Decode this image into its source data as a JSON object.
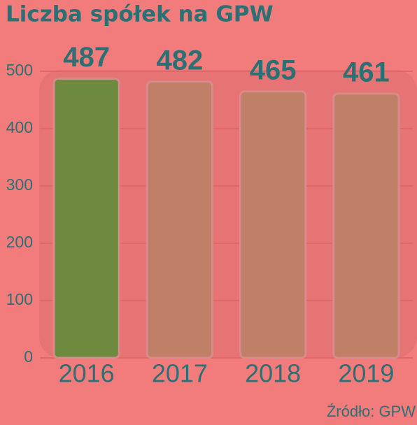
{
  "chart_data": {
    "type": "bar",
    "title": "Liczba spółek na GPW",
    "source": "Źródło: GPW",
    "categories": [
      "2016",
      "2017",
      "2018",
      "2019"
    ],
    "values": [
      487,
      482,
      465,
      461
    ],
    "colors": [
      "#6e8a3e",
      "#c08068",
      "#c08068",
      "#c08068"
    ],
    "ylim": [
      0,
      500
    ],
    "yticks": [
      0,
      100,
      200,
      300,
      400,
      500
    ],
    "grid": true
  }
}
